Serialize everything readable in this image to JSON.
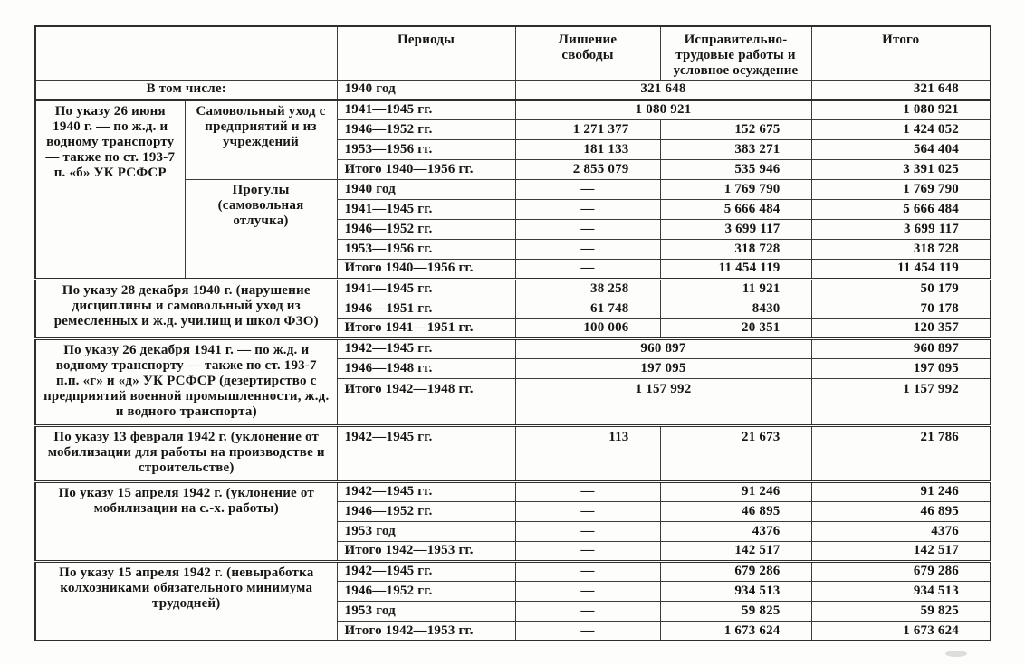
{
  "table": {
    "header": {
      "periods": "Периоды",
      "prison": "Лишение свободы",
      "labor": "Исправительно-трудовые работы и условное осуждение",
      "total": "Итого"
    },
    "intro": {
      "label": "В том числе:",
      "period": "1940 год",
      "merged": "321 648",
      "total": "321 648"
    },
    "s1": {
      "decree": "По указу 26 июня 1940 г. — по ж.д. и водному транспорту — также по ст. 193-7 п. «б» УК РСФСР",
      "sub1": {
        "label": "Самовольный уход с предприятий и из учреждений",
        "rows": [
          {
            "period": "1941—1945 гг.",
            "merged": "1 080 921",
            "total": "1 080 921"
          },
          {
            "period": "1946—1952 гг.",
            "prison": "1 271 377",
            "labor": "152 675",
            "total": "1 424 052"
          },
          {
            "period": "1953—1956 гг.",
            "prison": "181 133",
            "labor": "383 271",
            "total": "564 404"
          },
          {
            "period": "Итого 1940—1956 гг.",
            "prison": "2 855 079",
            "labor": "535 946",
            "total": "3 391 025"
          }
        ]
      },
      "sub2": {
        "label": "Прогулы (самовольная отлучка)",
        "rows": [
          {
            "period": "1940 год",
            "prison": "—",
            "labor": "1 769 790",
            "total": "1 769 790"
          },
          {
            "period": "1941—1945 гг.",
            "prison": "—",
            "labor": "5 666 484",
            "total": "5 666 484"
          },
          {
            "period": "1946—1952 гг.",
            "prison": "—",
            "labor": "3 699 117",
            "total": "3 699 117"
          },
          {
            "period": "1953—1956 гг.",
            "prison": "—",
            "labor": "318 728",
            "total": "318 728"
          },
          {
            "period": "Итого 1940—1956 гг.",
            "prison": "—",
            "labor": "11 454 119",
            "total": "11 454 119"
          }
        ]
      }
    },
    "s2": {
      "decree": "По указу 28 декабря 1940 г. (нарушение дисциплины и самовольный уход из ремесленных и ж.д. училищ и школ ФЗО)",
      "rows": [
        {
          "period": "1941—1945 гг.",
          "prison": "38 258",
          "labor": "11 921",
          "total": "50 179"
        },
        {
          "period": "1946—1951 гг.",
          "prison": "61 748",
          "labor": "8430",
          "total": "70 178"
        },
        {
          "period": "Итого 1941—1951 гг.",
          "prison": "100 006",
          "labor": "20 351",
          "total": "120 357"
        }
      ]
    },
    "s3": {
      "decree": "По указу 26 декабря 1941 г. — по ж.д. и водному транспорту — также по ст. 193-7 п.п. «г» и «д» УК РСФСР (дезертирство с предприятий военной промышленности, ж.д. и водного транспорта)",
      "rows": [
        {
          "period": "1942—1945 гг.",
          "merged": "960 897",
          "total": "960 897"
        },
        {
          "period": "1946—1948 гг.",
          "merged": "197 095",
          "total": "197 095"
        },
        {
          "period": "Итого 1942—1948 гг.",
          "merged": "1 157 992",
          "total": "1 157 992"
        }
      ]
    },
    "s4": {
      "decree": "По указу 13 февраля 1942 г. (уклонение от мобилизации для работы на производстве и строительстве)",
      "rows": [
        {
          "period": "1942—1945 гг.",
          "prison": "113",
          "labor": "21 673",
          "total": "21 786"
        }
      ]
    },
    "s5": {
      "decree": "По указу 15 апреля 1942 г. (уклонение от мобилизации на с.-х. работы)",
      "rows": [
        {
          "period": "1942—1945 гг.",
          "prison": "—",
          "labor": "91 246",
          "total": "91 246"
        },
        {
          "period": "1946—1952 гг.",
          "prison": "—",
          "labor": "46 895",
          "total": "46 895"
        },
        {
          "period": "1953 год",
          "prison": "—",
          "labor": "4376",
          "total": "4376"
        },
        {
          "period": "Итого 1942—1953 гг.",
          "prison": "—",
          "labor": "142 517",
          "total": "142 517"
        }
      ]
    },
    "s6": {
      "decree": "По указу 15 апреля 1942 г. (невыработка колхозниками обязательного минимума трудодней)",
      "rows": [
        {
          "period": "1942—1945 гг.",
          "prison": "—",
          "labor": "679 286",
          "total": "679 286"
        },
        {
          "period": "1946—1952 гг.",
          "prison": "—",
          "labor": "934 513",
          "total": "934 513"
        },
        {
          "period": "1953 год",
          "prison": "—",
          "labor": "59 825",
          "total": "59 825"
        },
        {
          "period": "Итого 1942—1953 гг.",
          "prison": "—",
          "labor": "1 673 624",
          "total": "1 673 624"
        }
      ]
    }
  }
}
